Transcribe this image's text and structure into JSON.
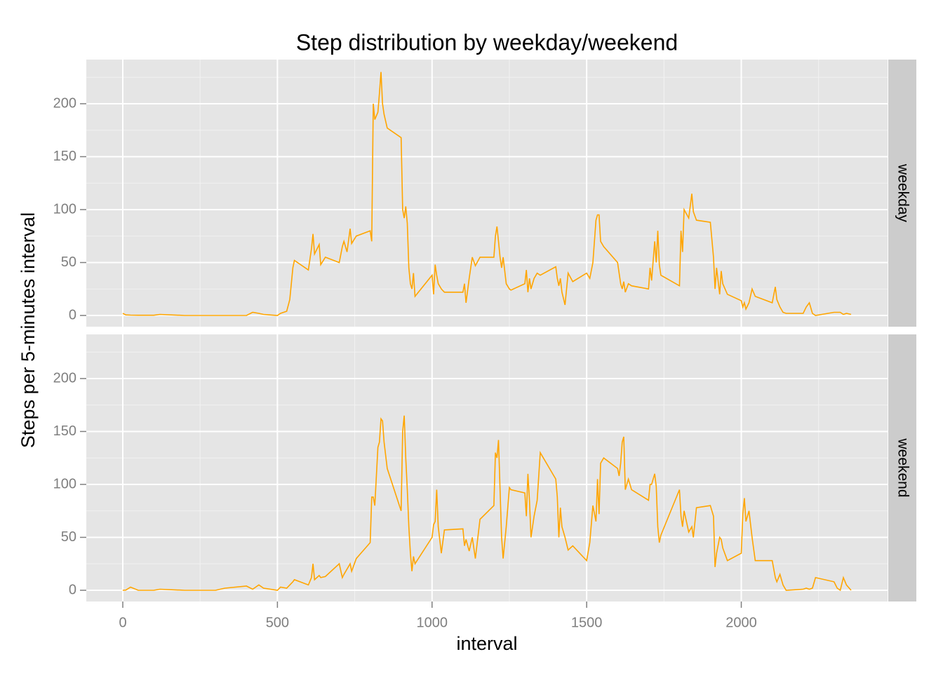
{
  "chart_data": {
    "type": "line",
    "title": "Step distribution by weekday/weekend",
    "x_label": "interval",
    "y_label": "Steps per 5-minutes interval",
    "facet": true,
    "grid": true,
    "x": [
      0,
      10,
      25,
      50,
      100,
      120,
      200,
      250,
      300,
      330,
      400,
      420,
      440,
      455,
      500,
      510,
      530,
      540,
      550,
      555,
      600,
      610,
      615,
      620,
      635,
      640,
      655,
      700,
      710,
      715,
      725,
      735,
      740,
      755,
      800,
      805,
      810,
      815,
      825,
      830,
      835,
      840,
      845,
      855,
      900,
      905,
      910,
      915,
      920,
      925,
      930,
      935,
      940,
      945,
      1000,
      1005,
      1010,
      1015,
      1020,
      1030,
      1040,
      1100,
      1105,
      1110,
      1120,
      1130,
      1140,
      1155,
      1200,
      1205,
      1210,
      1215,
      1220,
      1225,
      1230,
      1240,
      1250,
      1255,
      1300,
      1305,
      1310,
      1315,
      1320,
      1330,
      1340,
      1350,
      1400,
      1405,
      1410,
      1415,
      1420,
      1430,
      1440,
      1455,
      1500,
      1510,
      1520,
      1530,
      1535,
      1540,
      1545,
      1555,
      1600,
      1605,
      1610,
      1615,
      1620,
      1625,
      1635,
      1645,
      1700,
      1705,
      1710,
      1720,
      1725,
      1730,
      1735,
      1740,
      1800,
      1805,
      1810,
      1815,
      1830,
      1840,
      1845,
      1855,
      1900,
      1910,
      1915,
      1920,
      1930,
      1935,
      1940,
      1955,
      2000,
      2005,
      2010,
      2015,
      2025,
      2035,
      2045,
      2100,
      2110,
      2115,
      2125,
      2135,
      2145,
      2200,
      2210,
      2220,
      2230,
      2240,
      2300,
      2310,
      2320,
      2330,
      2340,
      2355
    ],
    "series": [
      {
        "name": "weekday",
        "color": "#ffa500",
        "values": [
          2,
          0.5,
          0.3,
          0.2,
          0.2,
          1,
          0,
          0,
          0,
          0,
          0,
          3,
          2,
          1,
          0,
          2,
          4,
          15,
          45,
          52,
          43,
          63,
          77,
          58,
          67,
          48,
          55,
          50,
          65,
          70,
          60,
          82,
          68,
          75,
          80,
          70,
          200,
          185,
          192,
          210,
          230,
          200,
          190,
          177,
          168,
          100,
          92,
          103,
          87,
          45,
          30,
          25,
          40,
          18,
          38,
          20,
          48,
          38,
          30,
          25,
          22,
          22,
          30,
          12,
          35,
          55,
          47,
          55,
          55,
          75,
          84,
          70,
          55,
          45,
          55,
          30,
          25,
          24,
          30,
          43,
          22,
          35,
          25,
          35,
          40,
          38,
          46,
          35,
          28,
          35,
          22,
          10,
          40,
          32,
          40,
          35,
          50,
          90,
          95,
          95,
          70,
          65,
          50,
          40,
          30,
          25,
          32,
          22,
          30,
          28,
          25,
          45,
          33,
          70,
          50,
          80,
          48,
          38,
          28,
          80,
          60,
          100,
          92,
          115,
          98,
          90,
          88,
          55,
          25,
          45,
          20,
          42,
          30,
          20,
          14,
          8,
          12,
          6,
          12,
          25,
          18,
          12,
          27,
          15,
          8,
          3,
          2,
          2,
          8,
          12,
          2,
          0,
          3,
          3,
          3,
          1,
          2,
          1
        ]
      },
      {
        "name": "weekend",
        "color": "#ffa500",
        "values": [
          0,
          0.2,
          3,
          0,
          0,
          1,
          0,
          0,
          0,
          2,
          4,
          1,
          5,
          2,
          0,
          3,
          2,
          5,
          8,
          10,
          5,
          12,
          25,
          10,
          14,
          12,
          13,
          25,
          12,
          15,
          20,
          25,
          18,
          30,
          45,
          88,
          88,
          80,
          135,
          140,
          162,
          160,
          140,
          115,
          75,
          150,
          165,
          125,
          95,
          60,
          35,
          18,
          32,
          25,
          50,
          62,
          65,
          95,
          60,
          35,
          57,
          58,
          42,
          48,
          37,
          50,
          30,
          67,
          80,
          130,
          125,
          142,
          95,
          50,
          30,
          60,
          97,
          95,
          92,
          70,
          110,
          85,
          50,
          70,
          85,
          130,
          105,
          88,
          50,
          78,
          60,
          50,
          38,
          42,
          28,
          45,
          80,
          65,
          105,
          72,
          120,
          125,
          115,
          108,
          120,
          140,
          145,
          95,
          105,
          95,
          85,
          100,
          100,
          110,
          98,
          60,
          45,
          52,
          95,
          70,
          60,
          75,
          55,
          60,
          50,
          78,
          80,
          70,
          22,
          35,
          50,
          48,
          40,
          28,
          35,
          72,
          87,
          65,
          75,
          50,
          28,
          28,
          12,
          8,
          15,
          5,
          0,
          1,
          2,
          1,
          2,
          12,
          8,
          2,
          0,
          12,
          5,
          0
        ]
      }
    ],
    "xlim": [
      -118,
      2473
    ],
    "xticks": [
      0,
      500,
      1000,
      1500,
      2000
    ],
    "xminor": [
      250,
      750,
      1250,
      1750,
      2250
    ],
    "ylim": [
      -10.6,
      241.7
    ],
    "yticks": [
      0,
      50,
      100,
      150,
      200
    ],
    "yminor": [
      25,
      75,
      125,
      175,
      225
    ]
  }
}
